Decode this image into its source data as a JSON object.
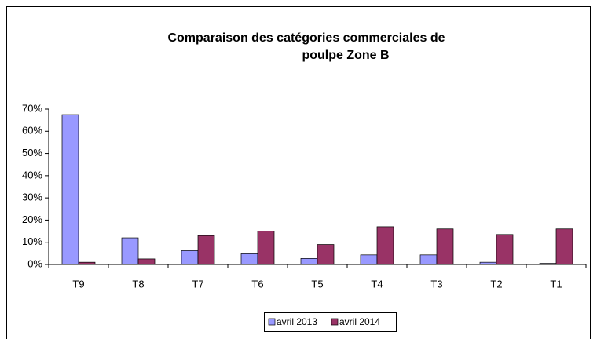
{
  "chart_data": {
    "type": "bar",
    "title": "Comparaison des catégories commerciales de poulpe Zone B",
    "categories": [
      "T9",
      "T8",
      "T7",
      "T6",
      "T5",
      "T4",
      "T3",
      "T2",
      "T1"
    ],
    "series": [
      {
        "name": "avril 2013",
        "color": "#9999ff",
        "values": [
          67.5,
          12,
          6.2,
          4.8,
          2.7,
          4.3,
          4.3,
          1,
          0.5
        ]
      },
      {
        "name": "avril 2014",
        "color": "#993366",
        "values": [
          1,
          2.5,
          13,
          15,
          9,
          17,
          16,
          13.5,
          16
        ]
      }
    ],
    "ylim": [
      0,
      70
    ],
    "yticks": [
      {
        "value": 0,
        "label": "0%"
      },
      {
        "value": 10,
        "label": "10%"
      },
      {
        "value": 20,
        "label": "20%"
      },
      {
        "value": 30,
        "label": "30%"
      },
      {
        "value": 40,
        "label": "40%"
      },
      {
        "value": 50,
        "label": "50%"
      },
      {
        "value": 60,
        "label": "60%"
      },
      {
        "value": 70,
        "label": "70%"
      }
    ],
    "grid": false,
    "legend": "bottom"
  }
}
